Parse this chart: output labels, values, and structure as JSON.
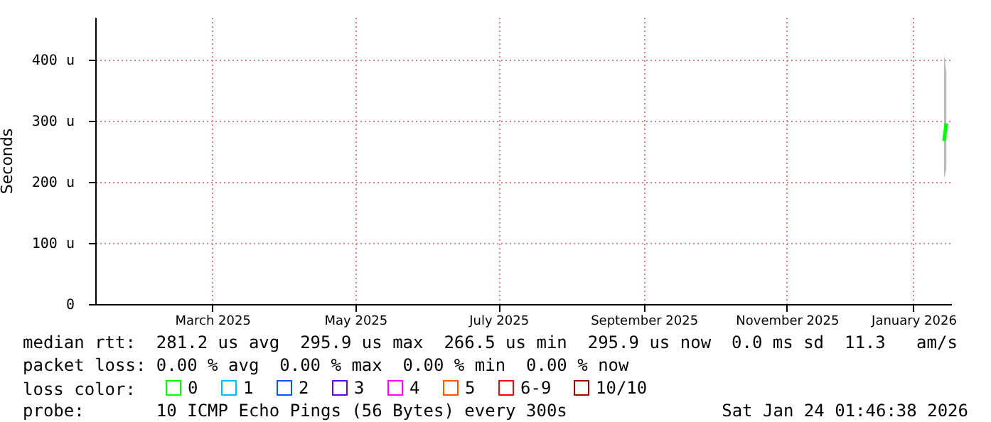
{
  "chart_data": {
    "type": "line",
    "ylabel": "Seconds",
    "legend_title": "loss color:",
    "legend": "bottom",
    "grid": true,
    "x": [
      "2026-01-21",
      "2026-01-22"
    ],
    "xlim": [
      "2025-01-24T01:46",
      "2026-01-24T01:46"
    ],
    "xticks": [
      {
        "value": "2025-03-15",
        "label": "March 2025"
      },
      {
        "value": "2025-05-15",
        "label": "May 2025"
      },
      {
        "value": "2025-07-15",
        "label": "July 2025"
      },
      {
        "value": "2025-09-15",
        "label": "September 2025"
      },
      {
        "value": "2025-11-15",
        "label": "November 2025"
      },
      {
        "value": "2026-01-08",
        "label": "January 2026"
      }
    ],
    "ylim": [
      0,
      470
    ],
    "yticks": [
      0,
      {
        "value": 100,
        "label": "100 u"
      },
      {
        "value": 200,
        "label": "200 u"
      },
      {
        "value": 300,
        "label": "300 u"
      },
      {
        "value": 400,
        "label": "400 u"
      }
    ],
    "series": [
      {
        "name": "0",
        "color": "#00ff00",
        "values": [
          267,
          296
        ],
        "lower": [
          205,
          220
        ],
        "upper": [
          410,
          380
        ]
      },
      {
        "name": "1",
        "color": "#00bbff",
        "values": [
          null,
          null
        ]
      },
      {
        "name": "2",
        "color": "#0059ff",
        "values": [
          null,
          null
        ]
      },
      {
        "name": "3",
        "color": "#5e00ff",
        "values": [
          null,
          null
        ]
      },
      {
        "name": "4",
        "color": "#ff00ff",
        "values": [
          null,
          null
        ]
      },
      {
        "name": "5",
        "color": "#ff5500",
        "values": [
          null,
          null
        ]
      },
      {
        "name": "6-9",
        "color": "#ff0000",
        "values": [
          null,
          null
        ]
      },
      {
        "name": "10/10",
        "color": "#a10000",
        "values": [
          null,
          null
        ]
      }
    ],
    "annotations": [
      "median rtt:  281.2 us avg  295.9 us max  266.5 us min  295.9 us now  0.0 ms sd  11.3   am/s",
      "packet loss: 0.00 % avg  0.00 % max  0.00 % min  0.00 % now",
      "probe:       10 ICMP Echo Pings (56 Bytes) every 300s",
      "Sat Jan 24 01:46:38 2026"
    ]
  }
}
